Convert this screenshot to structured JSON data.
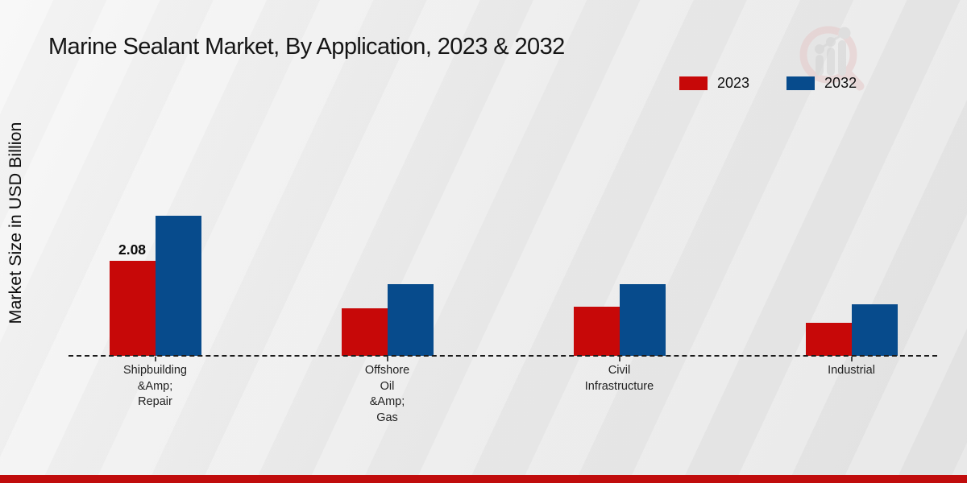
{
  "title": "Marine Sealant Market, By Application, 2023 & 2032",
  "y_axis_label": "Market Size in USD Billion",
  "colors": {
    "series_2023": "#c70808",
    "series_2032": "#074b8c",
    "footer_bar": "#c00c0c",
    "baseline": "#1b1b1b"
  },
  "legend": {
    "position": "top-right",
    "items": [
      {
        "label": "2023",
        "color": "#c70808"
      },
      {
        "label": "2032",
        "color": "#074b8c"
      }
    ]
  },
  "watermark_icon": "market-research-magnifier-logo",
  "chart_data": {
    "type": "bar",
    "title": "Marine Sealant Market, By Application, 2023 & 2032",
    "xlabel": "",
    "ylabel": "Market Size in USD Billion",
    "categories": [
      "Shipbuilding &Amp; Repair",
      "Offshore Oil &Amp; Gas",
      "Civil Infrastructure",
      "Industrial"
    ],
    "category_label_lines": [
      [
        "Shipbuilding",
        "&Amp;",
        "Repair"
      ],
      [
        "Offshore",
        "Oil",
        "&Amp;",
        "Gas"
      ],
      [
        "Civil",
        "Infrastructure"
      ],
      [
        "Industrial"
      ]
    ],
    "series": [
      {
        "name": "2023",
        "color": "#c70808",
        "values": [
          2.08,
          1.04,
          1.08,
          0.72
        ]
      },
      {
        "name": "2032",
        "color": "#074b8c",
        "values": [
          3.07,
          1.57,
          1.57,
          1.13
        ]
      }
    ],
    "data_labels": [
      {
        "series_index": 0,
        "category_index": 0,
        "text": "2.08"
      }
    ],
    "ylim": [
      0,
      3.5
    ],
    "grid": false,
    "baseline_style": "dashed",
    "legend_position": "top-right"
  }
}
